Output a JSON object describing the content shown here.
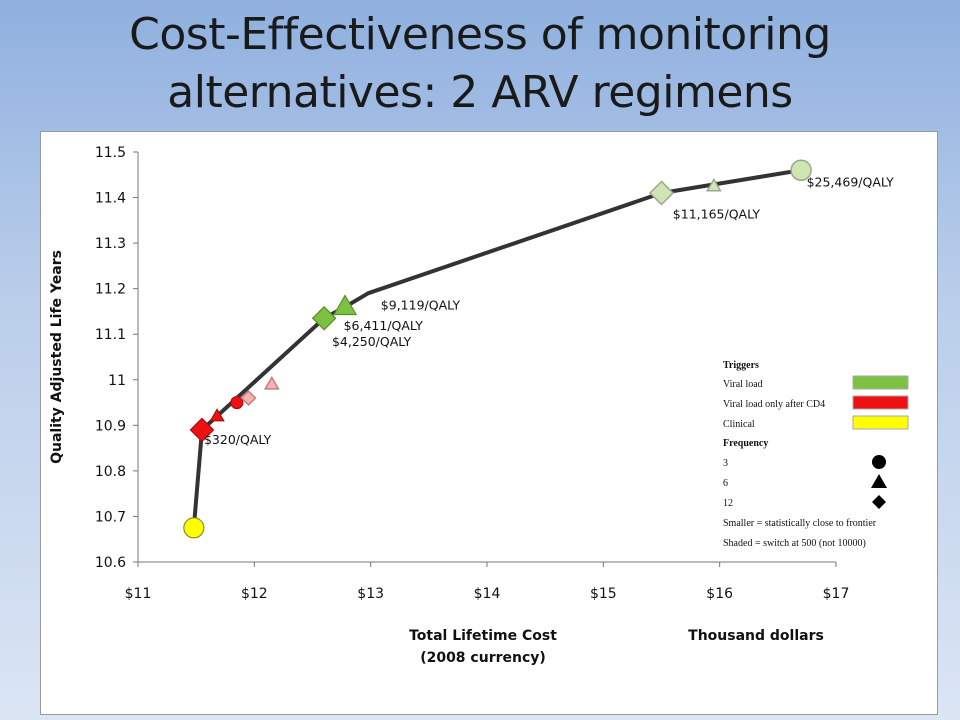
{
  "slide": {
    "title_line1": "Cost-Effectiveness of monitoring",
    "title_line2": "alternatives: 2 ARV regimens"
  },
  "chart_data": {
    "type": "scatter",
    "title": "",
    "xlabel_line1": "Total Lifetime Cost",
    "xlabel_line2": "(2008 currency)",
    "x_unit_label": "Thousand dollars",
    "ylabel": "Quality Adjusted Life Years",
    "xlim": [
      11,
      17
    ],
    "ylim": [
      10.6,
      11.5
    ],
    "x_ticks": [
      {
        "value": 11,
        "label": "$11"
      },
      {
        "value": 12,
        "label": "$12"
      },
      {
        "value": 13,
        "label": "$13"
      },
      {
        "value": 14,
        "label": "$14"
      },
      {
        "value": 15,
        "label": "$15"
      },
      {
        "value": 16,
        "label": "$16"
      },
      {
        "value": 17,
        "label": "$17"
      }
    ],
    "y_ticks": [
      {
        "value": 10.6,
        "label": "10.6"
      },
      {
        "value": 10.7,
        "label": "10.7"
      },
      {
        "value": 10.8,
        "label": "10.8"
      },
      {
        "value": 10.9,
        "label": "10.9"
      },
      {
        "value": 11.0,
        "label": "11"
      },
      {
        "value": 11.1,
        "label": "11.1"
      },
      {
        "value": 11.2,
        "label": "11.2"
      },
      {
        "value": 11.3,
        "label": "11.3"
      },
      {
        "value": 11.4,
        "label": "11.4"
      },
      {
        "value": 11.5,
        "label": "11.5"
      }
    ],
    "frontier": [
      {
        "x": 11.48,
        "y": 10.675
      },
      {
        "x": 11.55,
        "y": 10.89
      },
      {
        "x": 12.6,
        "y": 11.135
      },
      {
        "x": 12.78,
        "y": 11.16
      },
      {
        "x": 12.98,
        "y": 11.19
      },
      {
        "x": 15.5,
        "y": 11.41
      },
      {
        "x": 16.7,
        "y": 11.46
      }
    ],
    "points": [
      {
        "x": 11.48,
        "y": 10.675,
        "trigger": "Clinical",
        "frequency": 3,
        "size": "large",
        "shaded": false
      },
      {
        "x": 11.55,
        "y": 10.89,
        "trigger": "Viral load only after CD4",
        "frequency": 12,
        "size": "large",
        "shaded": false
      },
      {
        "x": 11.68,
        "y": 10.92,
        "trigger": "Viral load only after CD4",
        "frequency": 6,
        "size": "small",
        "shaded": false
      },
      {
        "x": 11.85,
        "y": 10.95,
        "trigger": "Viral load only after CD4",
        "frequency": 3,
        "size": "small",
        "shaded": false
      },
      {
        "x": 11.95,
        "y": 10.96,
        "trigger": "Viral load only after CD4",
        "frequency": 12,
        "size": "small",
        "shaded": true
      },
      {
        "x": 12.15,
        "y": 10.99,
        "trigger": "Viral load only after CD4",
        "frequency": 6,
        "size": "small",
        "shaded": true
      },
      {
        "x": 12.6,
        "y": 11.135,
        "trigger": "Viral load",
        "frequency": 12,
        "size": "large",
        "shaded": false
      },
      {
        "x": 12.78,
        "y": 11.16,
        "trigger": "Viral load",
        "frequency": 6,
        "size": "large",
        "shaded": false
      },
      {
        "x": 15.5,
        "y": 11.41,
        "trigger": "Viral load",
        "frequency": 12,
        "size": "large",
        "shaded": true
      },
      {
        "x": 15.95,
        "y": 11.425,
        "trigger": "Viral load",
        "frequency": 6,
        "size": "small",
        "shaded": true
      },
      {
        "x": 16.7,
        "y": 11.46,
        "trigger": "Viral load",
        "frequency": 3,
        "size": "large",
        "shaded": true
      }
    ],
    "annotations": [
      {
        "text": "$320/QALY",
        "x": 11.55,
        "y": 10.87
      },
      {
        "text": "$4,250/QALY",
        "x": 12.65,
        "y": 11.085
      },
      {
        "text": "$6,411/QALY",
        "x": 12.75,
        "y": 11.12
      },
      {
        "text": "$9,119/QALY",
        "x": 13.07,
        "y": 11.165
      },
      {
        "text": "$11,165/QALY",
        "x": 15.58,
        "y": 11.365
      },
      {
        "text": "$25,469/QALY",
        "x": 16.73,
        "y": 11.435
      }
    ],
    "legend": {
      "triggers_title": "Triggers",
      "triggers": [
        {
          "label": "Viral load",
          "color": "#7dc142"
        },
        {
          "label": "Viral load only after CD4",
          "color": "#ee1111"
        },
        {
          "label": "Clinical",
          "color": "#ffff00"
        }
      ],
      "frequency_title": "Frequency",
      "frequencies": [
        {
          "label": "3",
          "marker": "circle"
        },
        {
          "label": "6",
          "marker": "triangle"
        },
        {
          "label": "12",
          "marker": "diamond"
        }
      ],
      "note_size": "Smaller = statistically close to frontier",
      "note_shaded": "Shaded = switch at 500 (not 10000)"
    }
  }
}
